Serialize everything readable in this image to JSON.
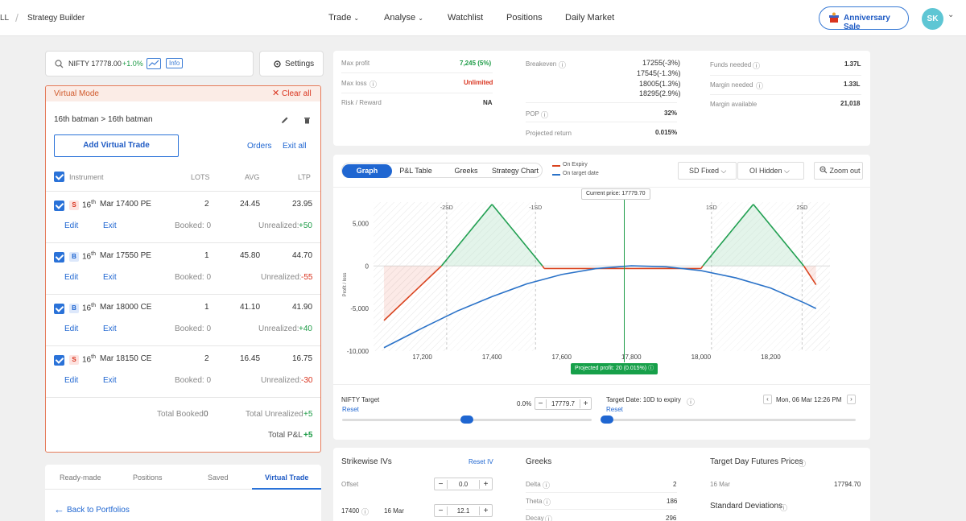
{
  "nav": {
    "left_fragment": "LL",
    "breadcrumb_sep": "/",
    "title": "Strategy Builder",
    "links": [
      "Trade",
      "Analyse",
      "Watchlist",
      "Positions",
      "Daily Market"
    ],
    "anniversary": "Anniversary Sale",
    "avatar": "SK"
  },
  "search": {
    "symbol": "NIFTY 17778.00",
    "change": "+1.0%",
    "info": "Info",
    "settings": "Settings"
  },
  "virtual": {
    "mode": "Virtual Mode",
    "clear": "Clear all",
    "name": "16th batman > 16th batman",
    "add_btn": "Add Virtual Trade",
    "orders": "Orders",
    "exit_all": "Exit all",
    "headers": {
      "instrument": "Instrument",
      "lots": "LOTS",
      "avg": "AVG",
      "ltp": "LTP"
    },
    "rows": [
      {
        "side": "S",
        "day": "16",
        "sup": "th",
        "desc": "Mar 17400 PE",
        "lots": "2",
        "avg": "24.45",
        "ltp": "23.95",
        "edit": "Edit",
        "exit": "Exit",
        "booked": "Booked: 0",
        "unreal_label": "Unrealized:",
        "unreal_val": "+50"
      },
      {
        "side": "B",
        "day": "16",
        "sup": "th",
        "desc": "Mar 17550 PE",
        "lots": "1",
        "avg": "45.80",
        "ltp": "44.70",
        "edit": "Edit",
        "exit": "Exit",
        "booked": "Booked: 0",
        "unreal_label": "Unrealized:",
        "unreal_val": "-55"
      },
      {
        "side": "B",
        "day": "16",
        "sup": "th",
        "desc": "Mar 18000 CE",
        "lots": "1",
        "avg": "41.10",
        "ltp": "41.90",
        "edit": "Edit",
        "exit": "Exit",
        "booked": "Booked: 0",
        "unreal_label": "Unrealized:",
        "unreal_val": "+40"
      },
      {
        "side": "S",
        "day": "16",
        "sup": "th",
        "desc": "Mar 18150 CE",
        "lots": "2",
        "avg": "16.45",
        "ltp": "16.75",
        "edit": "Edit",
        "exit": "Exit",
        "booked": "Booked: 0",
        "unreal_label": "Unrealized:",
        "unreal_val": "-30"
      }
    ],
    "total_booked_label": "Total Booked",
    "total_booked": "0",
    "total_unreal_label": "Total Unrealized",
    "total_unreal": "+5",
    "total_pnl_label": "Total P&L",
    "total_pnl": "+5"
  },
  "bottom_tabs": [
    "Ready-made",
    "Positions",
    "Saved",
    "Virtual Trade"
  ],
  "back": "Back to Portfolios",
  "summary": {
    "max_profit_label": "Max profit",
    "max_profit": "7,245 (5%)",
    "max_loss_label": "Max loss",
    "max_loss": "Unlimited",
    "rr_label": "Risk / Reward",
    "rr": "NA",
    "breakeven_label": "Breakeven",
    "breakevens": [
      "17255(-3%)",
      "17545(-1.3%)",
      "18005(1.3%)",
      "18295(2.9%)"
    ],
    "pop_label": "POP",
    "pop": "32%",
    "proj_label": "Projected return",
    "proj": "0.015%",
    "funds_label": "Funds needed",
    "funds": "1.37L",
    "margin_label": "Margin needed",
    "margin": "1.33L",
    "avail_label": "Margin available",
    "avail": "21,018"
  },
  "chart_tabs": [
    "Graph",
    "P&L Table",
    "Greeks",
    "Strategy Chart"
  ],
  "legend": {
    "expiry": "On Expiry",
    "target": "On target date"
  },
  "controls": {
    "sd": "SD Fixed",
    "oi": "OI Hidden",
    "zoom": "Zoom out"
  },
  "chart_data": {
    "type": "line",
    "ylabel": "Profit / loss",
    "current_price_label": "Current price: 17779.70",
    "projected_label": "Projected profit: 20 (0.015%)",
    "x_ticks": [
      17200,
      17400,
      17600,
      17800,
      18000,
      18200
    ],
    "x_tick_labels": [
      "17,200",
      "17,400",
      "17,600",
      "17,800",
      "18,000",
      "18,200"
    ],
    "y_ticks": [
      5000,
      0,
      -5000,
      -10000
    ],
    "y_tick_labels": [
      "5,000",
      "0",
      "-5,000",
      "-10,000"
    ],
    "xlim": [
      17060,
      18370
    ],
    "ylim": [
      -10000,
      7500
    ],
    "current_price": 17779.7,
    "sd_lines": [
      {
        "label": "-2SD",
        "x": 17270
      },
      {
        "label": "-1SD",
        "x": 17525
      },
      {
        "label": "1SD",
        "x": 18030
      },
      {
        "label": "2SD",
        "x": 18290
      }
    ],
    "series": [
      {
        "name": "On Expiry",
        "color": "#d9431e",
        "points": [
          [
            17090,
            -6400
          ],
          [
            17255,
            0
          ],
          [
            17400,
            7245
          ],
          [
            17545,
            0
          ],
          [
            17550,
            -300
          ],
          [
            18000,
            -300
          ],
          [
            18005,
            0
          ],
          [
            18150,
            7245
          ],
          [
            18295,
            0
          ],
          [
            18330,
            -2200
          ]
        ]
      },
      {
        "name": "On target date",
        "color": "#2a72c8",
        "points": [
          [
            17090,
            -9600
          ],
          [
            17200,
            -7300
          ],
          [
            17300,
            -5300
          ],
          [
            17400,
            -3600
          ],
          [
            17500,
            -2100
          ],
          [
            17600,
            -1000
          ],
          [
            17700,
            -300
          ],
          [
            17800,
            20
          ],
          [
            17900,
            -100
          ],
          [
            18000,
            -550
          ],
          [
            18100,
            -1400
          ],
          [
            18200,
            -2600
          ],
          [
            18300,
            -4400
          ],
          [
            18330,
            -5000
          ]
        ]
      }
    ]
  },
  "target": {
    "nifty_label": "NIFTY Target",
    "reset": "Reset",
    "pct": "0.0%",
    "value": "17779.7",
    "date_label": "Target Date: 10D to expiry",
    "date_reset": "Reset",
    "date_value": "Mon, 06 Mar 12:26 PM",
    "nifty_slider": 0.5,
    "date_slider": 0.0
  },
  "ivs": {
    "title": "Strikewise IVs",
    "reset": "Reset IV",
    "offset_label": "Offset",
    "offset": "0.0",
    "row_strike": "17400",
    "row_date": "16 Mar",
    "row_iv": "12.1"
  },
  "greeks": {
    "title": "Greeks",
    "rows": [
      {
        "k": "Delta",
        "v": "2"
      },
      {
        "k": "Theta",
        "v": "186"
      },
      {
        "k": "Decay",
        "v": "296"
      }
    ]
  },
  "futures": {
    "title": "Target Day Futures Prices",
    "date": "16 Mar",
    "price": "17794.70",
    "sd_title": "Standard Deviations"
  }
}
